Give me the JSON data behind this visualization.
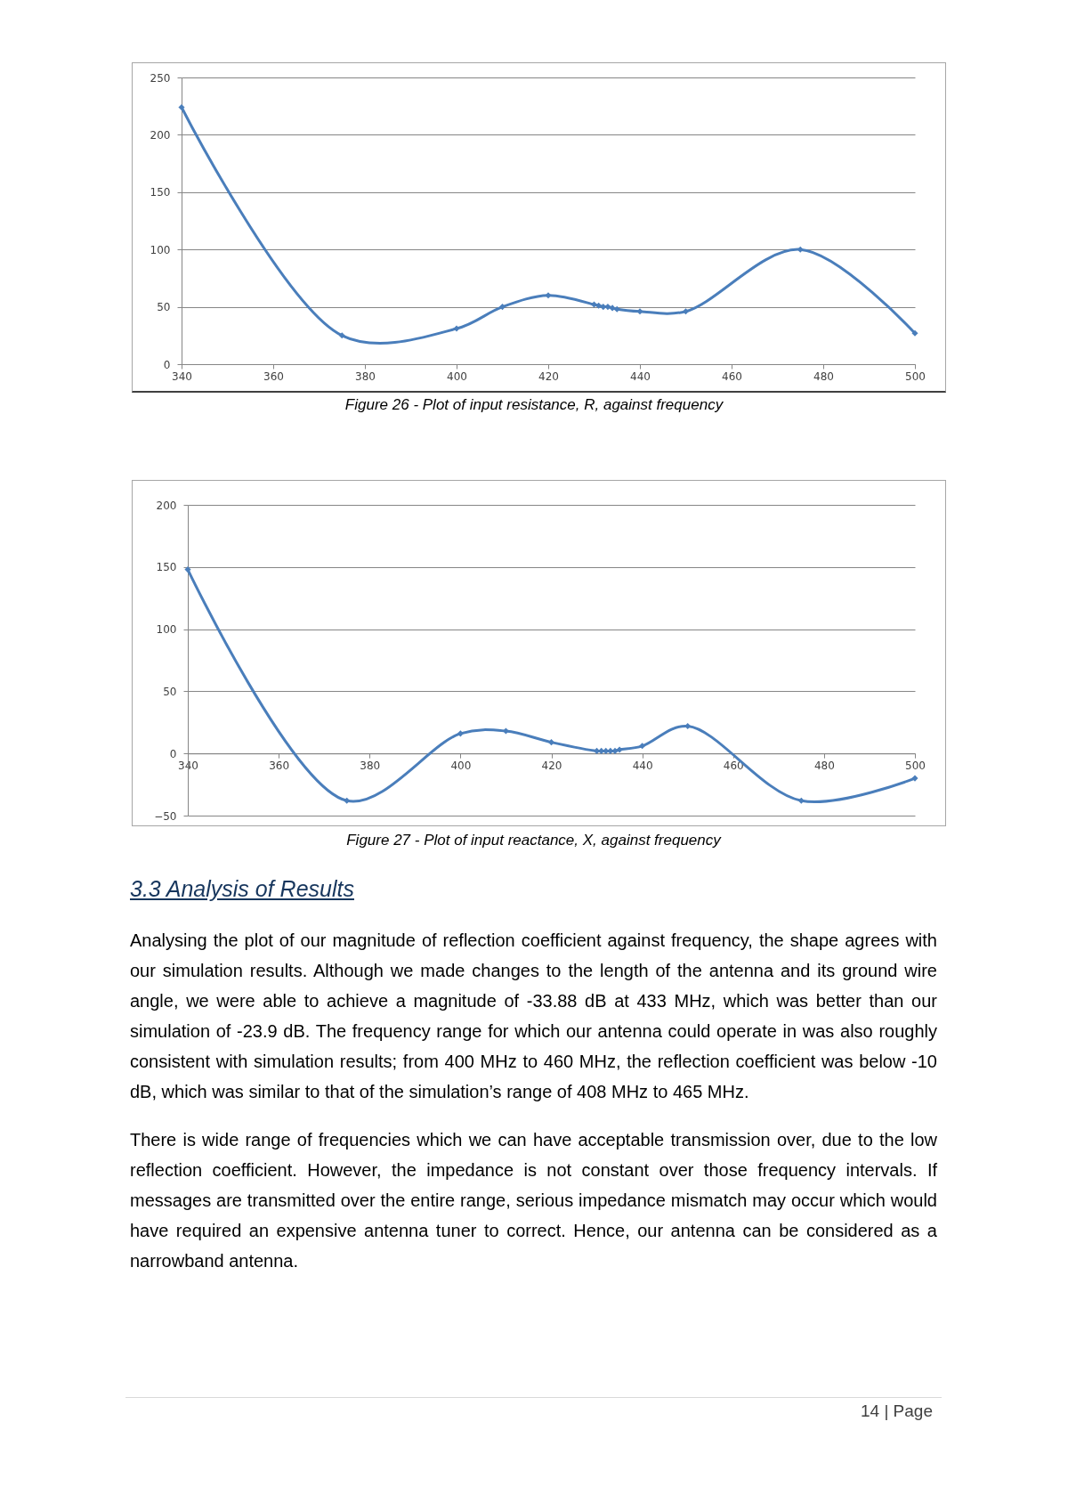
{
  "chart_data": [
    {
      "type": "line",
      "title": "Figure 26 - Plot of input resistance, R, against frequency",
      "x": [
        340,
        375,
        400,
        410,
        420,
        430,
        431,
        432,
        433,
        434,
        435,
        440,
        450,
        475,
        500
      ],
      "series": [
        {
          "color": "#4a7ebb",
          "values": [
            224,
            25,
            31,
            50,
            60,
            52,
            51,
            50,
            50,
            49,
            48,
            46,
            46,
            100,
            27
          ]
        }
      ],
      "xlim": [
        340,
        500
      ],
      "ylim": [
        0,
        250
      ],
      "xticks": [
        340,
        360,
        380,
        400,
        420,
        440,
        460,
        480,
        500
      ],
      "yticks": [
        0,
        50,
        100,
        150,
        200,
        250
      ],
      "grid": "y",
      "marker": "diamond"
    },
    {
      "type": "line",
      "title": "Figure 27 - Plot of input reactance, X, against frequency",
      "x": [
        340,
        375,
        400,
        410,
        420,
        430,
        431,
        432,
        433,
        434,
        435,
        440,
        450,
        475,
        500
      ],
      "series": [
        {
          "color": "#4a7ebb",
          "values": [
            148,
            -38,
            16,
            18,
            9,
            2,
            2,
            2,
            2,
            2,
            3,
            6,
            22,
            -38,
            -20
          ]
        }
      ],
      "xlim": [
        340,
        500
      ],
      "ylim": [
        -50,
        200
      ],
      "xticks": [
        340,
        360,
        380,
        400,
        420,
        440,
        460,
        480,
        500
      ],
      "yticks": [
        -50,
        0,
        50,
        100,
        150,
        200
      ],
      "grid": "y",
      "marker": "diamond",
      "annotations": [
        "3.3 Analysis of Results",
        "Analysing the plot of our magnitude of reflection coefficient against frequency, the shape agrees with our simulation results. Although we made changes to the length of the antenna and its ground wire angle, we were able to achieve a magnitude of -33.88 dB at 433 MHz, which was better than our simulation of -23.9 dB. The frequency range for which our antenna could operate in was also roughly consistent with simulation results; from 400 MHz to 460 MHz, the reflection coefficient was below -10 dB, which was similar to that of the simulation’s range of 408 MHz to 465 MHz.",
        "There is wide range of frequencies which we can have acceptable transmission over, due to the low reflection coefficient. However, the impedance is not constant over those frequency intervals. If messages are transmitted over the entire range, serious impedance mismatch may occur which would have required an expensive antenna tuner to correct. Hence, our antenna can be considered as a narrowband antenna.",
        "14 | Page"
      ]
    }
  ]
}
